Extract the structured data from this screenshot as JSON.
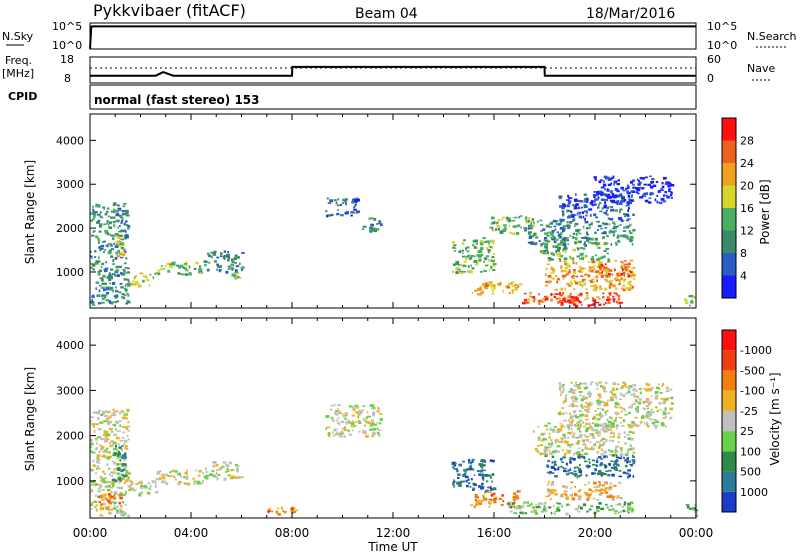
{
  "header": {
    "station": "Pykkvibaer (fitACF)",
    "beam": "Beam 04",
    "date": "18/Mar/2016"
  },
  "mode_label": "normal (fast stereo) 153",
  "chart_data": [
    {
      "type": "line",
      "id": "nsky",
      "left_label": "N.Sky",
      "right_label": "N.Search",
      "left_ticks": [
        "10^5",
        "10^0"
      ],
      "right_ticks": [
        "10^5",
        "10^0"
      ],
      "x": [
        0,
        0.05,
        0.1,
        24
      ],
      "series": [
        {
          "values": [
            0.05,
            4.3,
            4.35,
            4.35
          ]
        }
      ],
      "ylim": [
        0,
        5
      ]
    },
    {
      "type": "line",
      "id": "freq",
      "left_label": [
        "Freq.",
        "[MHz]"
      ],
      "right_label": "Nave",
      "left_ticks": [
        "18",
        "8"
      ],
      "right_ticks": [
        "60",
        "0"
      ],
      "cpid_label": "CPID",
      "x": [
        0,
        2.6,
        2.9,
        3.3,
        8,
        8.01,
        18,
        18.01,
        24
      ],
      "series": [
        {
          "values": [
            10.8,
            10.8,
            12.2,
            10.8,
            10.8,
            14.2,
            14.2,
            10.8,
            10.8
          ]
        }
      ],
      "ylim": [
        8,
        18
      ]
    },
    {
      "type": "heatmap",
      "id": "power",
      "ylabel": "Slant Range [km]",
      "yticks": [
        1000,
        2000,
        3000,
        4000
      ],
      "ylim": [
        180,
        4600
      ],
      "xlim": [
        0,
        24
      ],
      "xticks": [
        "00:00",
        "04:00",
        "08:00",
        "12:00",
        "16:00",
        "20:00",
        "00:00"
      ],
      "colorbar": {
        "label": "Power [dB]",
        "ticks": [
          "4",
          "8",
          "12",
          "16",
          "20",
          "24",
          "28"
        ],
        "colors": [
          "#1a1aff",
          "#2a5cc8",
          "#3a8a6a",
          "#48b060",
          "#d6d62a",
          "#f0a020",
          "#f06020",
          "#ff1010"
        ]
      },
      "regions": [
        {
          "x": [
            0.0,
            1.5
          ],
          "y": [
            250,
            2600
          ],
          "level": 2
        },
        {
          "x": [
            0.9,
            1.3
          ],
          "y": [
            1300,
            1850
          ],
          "level": 4
        },
        {
          "x": [
            1.6,
            2.6
          ],
          "y": [
            700,
            1000
          ],
          "level": 4
        },
        {
          "x": [
            2.6,
            4.4
          ],
          "y": [
            950,
            1250
          ],
          "level": 3
        },
        {
          "x": [
            4.5,
            6.0
          ],
          "y": [
            1000,
            1500
          ],
          "level": 2
        },
        {
          "x": [
            5.6,
            6.0
          ],
          "y": [
            850,
            1000
          ],
          "level": 3
        },
        {
          "x": [
            9.3,
            10.6
          ],
          "y": [
            2300,
            2700
          ],
          "level": 1
        },
        {
          "x": [
            10.6,
            11.5
          ],
          "y": [
            1950,
            2250
          ],
          "level": 2
        },
        {
          "x": [
            14.3,
            16.0
          ],
          "y": [
            1000,
            1800
          ],
          "level": 3
        },
        {
          "x": [
            15.0,
            17.0
          ],
          "y": [
            500,
            800
          ],
          "level": 5
        },
        {
          "x": [
            15.8,
            17.5
          ],
          "y": [
            1900,
            2300
          ],
          "level": 3
        },
        {
          "x": [
            17.0,
            21.0
          ],
          "y": [
            300,
            550
          ],
          "level": 6
        },
        {
          "x": [
            18.5,
            20.5
          ],
          "y": [
            250,
            450
          ],
          "level": 7
        },
        {
          "x": [
            18.0,
            21.5
          ],
          "y": [
            600,
            1300
          ],
          "level": 5
        },
        {
          "x": [
            20.0,
            21.5
          ],
          "y": [
            900,
            1200
          ],
          "level": 6
        },
        {
          "x": [
            17.8,
            20.5
          ],
          "y": [
            1300,
            1800
          ],
          "level": 3
        },
        {
          "x": [
            17.3,
            21.5
          ],
          "y": [
            1650,
            2200
          ],
          "level": 2
        },
        {
          "x": [
            18.5,
            21.5
          ],
          "y": [
            2200,
            2800
          ],
          "level": 1
        },
        {
          "x": [
            19.8,
            23.0
          ],
          "y": [
            2600,
            3200
          ],
          "level": 0
        },
        {
          "x": [
            23.5,
            24.0
          ],
          "y": [
            250,
            500
          ],
          "level": 3
        }
      ]
    },
    {
      "type": "heatmap",
      "id": "velocity",
      "ylabel": "Slant Range [km]",
      "yticks": [
        1000,
        2000,
        3000,
        4000
      ],
      "ylim": [
        180,
        4600
      ],
      "xlim": [
        0,
        24
      ],
      "xticks": [
        "00:00",
        "04:00",
        "08:00",
        "12:00",
        "16:00",
        "20:00",
        "00:00"
      ],
      "xlabel": "Time UT",
      "colorbar": {
        "label": "Velocity [m s⁻¹]",
        "ticks": [
          "1000",
          "500",
          "100",
          "25",
          "-25",
          "-100",
          "-500",
          "-1000"
        ],
        "colors": [
          "#1a3cc8",
          "#2a7a9a",
          "#2e8a46",
          "#6ad04a",
          "#c0c0c0",
          "#f0b020",
          "#f08010",
          "#f04010",
          "#ff1010"
        ]
      },
      "regions": [
        {
          "x": [
            0.0,
            1.5
          ],
          "y": [
            250,
            2600
          ],
          "level": 4
        },
        {
          "x": [
            0.8,
            1.4
          ],
          "y": [
            900,
            1800
          ],
          "level": 2
        },
        {
          "x": [
            0.3,
            1.2
          ],
          "y": [
            400,
            800
          ],
          "level": 6
        },
        {
          "x": [
            1.5,
            2.7
          ],
          "y": [
            700,
            1050
          ],
          "level": 4
        },
        {
          "x": [
            2.6,
            4.5
          ],
          "y": [
            950,
            1250
          ],
          "level": 4
        },
        {
          "x": [
            4.5,
            6.0
          ],
          "y": [
            1050,
            1450
          ],
          "level": 4
        },
        {
          "x": [
            7.0,
            8.2
          ],
          "y": [
            280,
            450
          ],
          "level": 6
        },
        {
          "x": [
            9.3,
            11.5
          ],
          "y": [
            2000,
            2700
          ],
          "level": 4
        },
        {
          "x": [
            14.3,
            16.0
          ],
          "y": [
            800,
            1500
          ],
          "level": 1
        },
        {
          "x": [
            15.0,
            17.0
          ],
          "y": [
            450,
            800
          ],
          "level": 6
        },
        {
          "x": [
            16.5,
            21.5
          ],
          "y": [
            300,
            550
          ],
          "level": 3
        },
        {
          "x": [
            18.0,
            21.0
          ],
          "y": [
            600,
            1000
          ],
          "level": 5
        },
        {
          "x": [
            18.0,
            21.5
          ],
          "y": [
            1100,
            1600
          ],
          "level": 1
        },
        {
          "x": [
            17.5,
            21.5
          ],
          "y": [
            1600,
            2300
          ],
          "level": 4
        },
        {
          "x": [
            18.5,
            23.0
          ],
          "y": [
            2200,
            3200
          ],
          "level": 4
        },
        {
          "x": [
            23.5,
            24.0
          ],
          "y": [
            250,
            500
          ],
          "level": 3
        }
      ]
    }
  ]
}
